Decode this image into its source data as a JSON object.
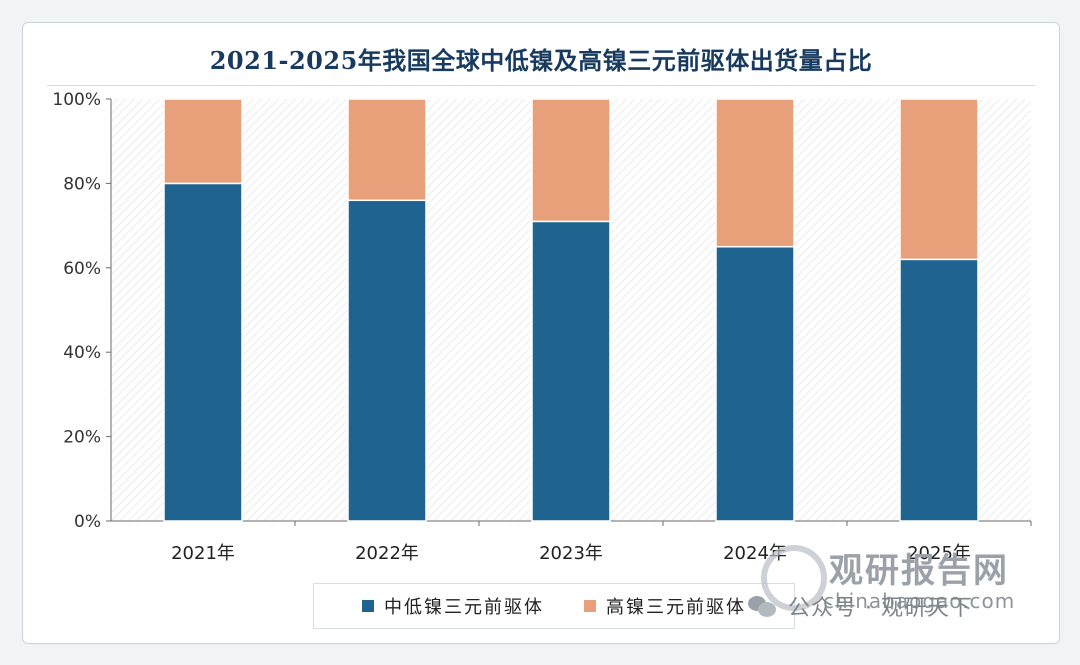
{
  "chart_data": {
    "type": "bar",
    "stacked": true,
    "title": "2021-2025年我国全球中低镍及高镍三元前驱体出货量占比",
    "categories": [
      "2021年",
      "2022年",
      "2023年",
      "2024年",
      "2025年"
    ],
    "series": [
      {
        "name": "中低镍三元前驱体",
        "values": [
          80,
          76,
          71,
          65,
          62
        ]
      },
      {
        "name": "高镍三元前驱体",
        "values": [
          20,
          24,
          29,
          35,
          38
        ]
      }
    ],
    "y_ticks": [
      "0%",
      "20%",
      "40%",
      "60%",
      "80%",
      "100%"
    ],
    "ylim": [
      0,
      100
    ],
    "legend_position": "bottom",
    "grid": false
  },
  "colors": {
    "series": [
      "#1f6390",
      "#e8a07a"
    ],
    "title": "#173a5e"
  },
  "watermark": {
    "name": "观研报告网",
    "url": "chinabaogao.com"
  },
  "footer": {
    "wechat": "公众号 · 观研天下"
  }
}
